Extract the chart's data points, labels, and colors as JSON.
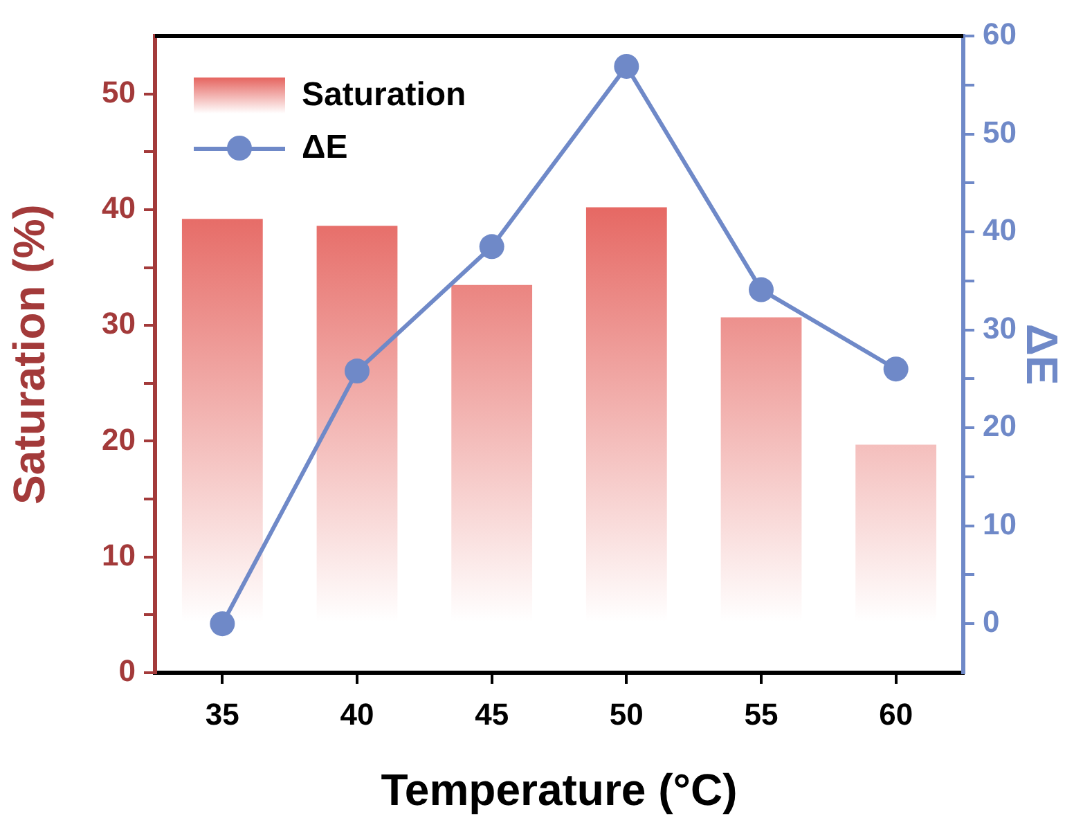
{
  "chart_data": {
    "type": "bar",
    "xlabel": "Temperature (°C)",
    "ylabel": "Saturation (%)",
    "y2label": "ΔE",
    "categories": [
      "35",
      "40",
      "45",
      "50",
      "55",
      "60"
    ],
    "series": [
      {
        "name": "Saturation",
        "color": "#e5645f",
        "values": [
          39.2,
          38.6,
          33.5,
          40.2,
          30.7,
          19.7
        ]
      },
      {
        "name": "ΔE",
        "type": "line",
        "axis": "y2",
        "color": "#6f89c8",
        "marker": "circle",
        "line_style": "solid",
        "values": [
          0,
          25.8,
          38.5,
          56.9,
          34.1,
          26.0
        ]
      }
    ],
    "ylim": [
      0,
      55
    ],
    "yticks": [
      0,
      {
        "value": 5,
        "label": null
      },
      10,
      {
        "value": 15,
        "label": null
      },
      20,
      {
        "value": 25,
        "label": null
      },
      30,
      {
        "value": 35,
        "label": null
      },
      40,
      {
        "value": 45,
        "label": null
      },
      50
    ],
    "y2lim": [
      -5,
      60
    ],
    "y2ticks": [
      0,
      {
        "value": 5,
        "label": null
      },
      10,
      {
        "value": 15,
        "label": null
      },
      20,
      {
        "value": 25,
        "label": null
      },
      30,
      {
        "value": 35,
        "label": null
      },
      40,
      {
        "value": 45,
        "label": null
      },
      50,
      {
        "value": 55,
        "label": null
      },
      60
    ],
    "grid": false,
    "legend": "top left"
  }
}
